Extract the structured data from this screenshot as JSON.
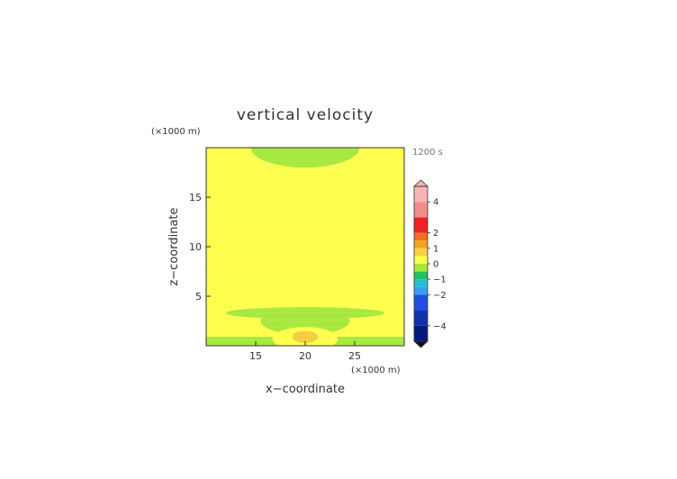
{
  "chart_data": {
    "type": "heatmap",
    "title": "vertical velocity",
    "xlabel": "x−coordinate",
    "ylabel": "z−coordinate",
    "x_unit": "(×1000 m)",
    "y_unit": "(×1000 m)",
    "time_label": "1200 s",
    "xlim": [
      10,
      30
    ],
    "ylim": [
      0,
      20
    ],
    "x_ticks": [
      15,
      20,
      25
    ],
    "y_ticks": [
      5,
      10,
      15
    ],
    "x_tick_labels": [
      "15",
      "20",
      "25"
    ],
    "y_tick_labels": [
      "5",
      "10",
      "15"
    ],
    "background_color": "#fefe4a",
    "regions": [
      {
        "name": "upper-negative-band",
        "color": "#a6e83c",
        "shape": "ellipse",
        "cx": 20,
        "cy": 20,
        "rx": 5.5,
        "ry": 2.0
      },
      {
        "name": "lower-negative-wing",
        "color": "#a6e83c",
        "shape": "ellipse",
        "cx": 20,
        "cy": 3.3,
        "rx": 8.0,
        "ry": 0.6
      },
      {
        "name": "lower-negative-wing-center",
        "color": "#a6e83c",
        "shape": "ellipse",
        "cx": 20,
        "cy": 2.5,
        "rx": 4.5,
        "ry": 1.4
      },
      {
        "name": "surface-negative-band",
        "color": "#a6e83c",
        "shape": "rect",
        "x0": 10,
        "x1": 30,
        "y0": 0,
        "y1": 0.9
      },
      {
        "name": "surface-positive-core",
        "color": "#fefe4a",
        "shape": "ellipse",
        "cx": 20,
        "cy": 0.7,
        "rx": 3.3,
        "ry": 1.2
      },
      {
        "name": "surface-positive-center",
        "color": "#f4cc3e",
        "shape": "ellipse",
        "cx": 20,
        "cy": 0.9,
        "rx": 1.3,
        "ry": 0.6
      }
    ],
    "colorbar": {
      "min": -5,
      "max": 5,
      "levels": [
        {
          "from": 4.0,
          "to": 5.0,
          "color": "#f8b4b4"
        },
        {
          "from": 3.0,
          "to": 4.0,
          "color": "#f48c8c"
        },
        {
          "from": 2.0,
          "to": 3.0,
          "color": "#ee2222"
        },
        {
          "from": 1.5,
          "to": 2.0,
          "color": "#f47020"
        },
        {
          "from": 1.0,
          "to": 1.5,
          "color": "#f8a020"
        },
        {
          "from": 0.5,
          "to": 1.0,
          "color": "#f8d040"
        },
        {
          "from": 0.0,
          "to": 0.5,
          "color": "#fefe4a"
        },
        {
          "from": -0.5,
          "to": 0.0,
          "color": "#a6e83c"
        },
        {
          "from": -1.0,
          "to": -0.5,
          "color": "#22c060"
        },
        {
          "from": -1.5,
          "to": -1.0,
          "color": "#20c0d0"
        },
        {
          "from": -2.0,
          "to": -1.5,
          "color": "#3aa0f0"
        },
        {
          "from": -3.0,
          "to": -2.0,
          "color": "#2050e0"
        },
        {
          "from": -4.0,
          "to": -3.0,
          "color": "#1030b0"
        },
        {
          "from": -5.0,
          "to": -4.0,
          "color": "#081880"
        }
      ],
      "tick_values": [
        4,
        2,
        1,
        0,
        -1,
        -2,
        -4
      ],
      "tick_labels": [
        "4",
        "2",
        "1",
        "0",
        "−1",
        "−2",
        "−4"
      ]
    }
  }
}
